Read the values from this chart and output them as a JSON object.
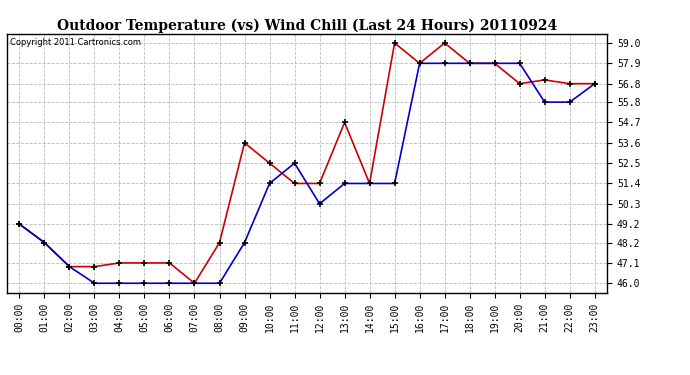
{
  "title": "Outdoor Temperature (vs) Wind Chill (Last 24 Hours) 20110924",
  "copyright": "Copyright 2011 Cartronics.com",
  "x_labels": [
    "00:00",
    "01:00",
    "02:00",
    "03:00",
    "04:00",
    "05:00",
    "06:00",
    "07:00",
    "08:00",
    "09:00",
    "10:00",
    "11:00",
    "12:00",
    "13:00",
    "14:00",
    "15:00",
    "16:00",
    "17:00",
    "18:00",
    "19:00",
    "20:00",
    "21:00",
    "22:00",
    "23:00"
  ],
  "temp_red": [
    49.2,
    48.2,
    46.9,
    46.9,
    47.1,
    47.1,
    47.1,
    46.0,
    48.2,
    53.6,
    52.5,
    51.4,
    51.4,
    54.7,
    51.4,
    59.0,
    57.9,
    59.0,
    57.9,
    57.9,
    56.8,
    57.0,
    56.8,
    56.8
  ],
  "wind_blue": [
    49.2,
    48.2,
    46.9,
    46.0,
    46.0,
    46.0,
    46.0,
    46.0,
    46.0,
    48.2,
    51.4,
    52.5,
    50.3,
    51.4,
    51.4,
    51.4,
    57.9,
    57.9,
    57.9,
    57.9,
    57.9,
    55.8,
    55.8,
    56.8
  ],
  "ylim": [
    45.5,
    59.5
  ],
  "yticks": [
    46.0,
    47.1,
    48.2,
    49.2,
    50.3,
    51.4,
    52.5,
    53.6,
    54.7,
    55.8,
    56.8,
    57.9,
    59.0
  ],
  "background_color": "#ffffff",
  "plot_bg_color": "#ffffff",
  "grid_color": "#bbbbbb",
  "red_color": "#cc0000",
  "blue_color": "#0000cc",
  "title_fontsize": 10,
  "tick_fontsize": 7,
  "copyright_fontsize": 6
}
